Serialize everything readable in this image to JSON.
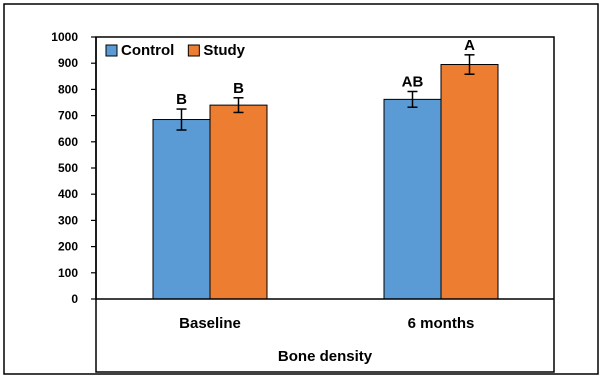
{
  "chart_data": {
    "type": "bar",
    "categories": [
      "Baseline",
      "6 months"
    ],
    "series": [
      {
        "name": "Control",
        "color": "#5b9bd5",
        "values": [
          685,
          762
        ],
        "errors": [
          40,
          30
        ],
        "letters": [
          "B",
          "AB"
        ]
      },
      {
        "name": "Study",
        "color": "#ed7d31",
        "values": [
          740,
          895
        ],
        "errors": [
          28,
          37
        ],
        "letters": [
          "B",
          "A"
        ]
      }
    ],
    "title": "",
    "xlabel": "Bone density",
    "ylabel": "",
    "ylim": [
      0,
      1000
    ],
    "yticks": [
      0,
      100,
      200,
      300,
      400,
      500,
      600,
      700,
      800,
      900,
      1000
    ],
    "grid": false,
    "legend": "top-left"
  }
}
